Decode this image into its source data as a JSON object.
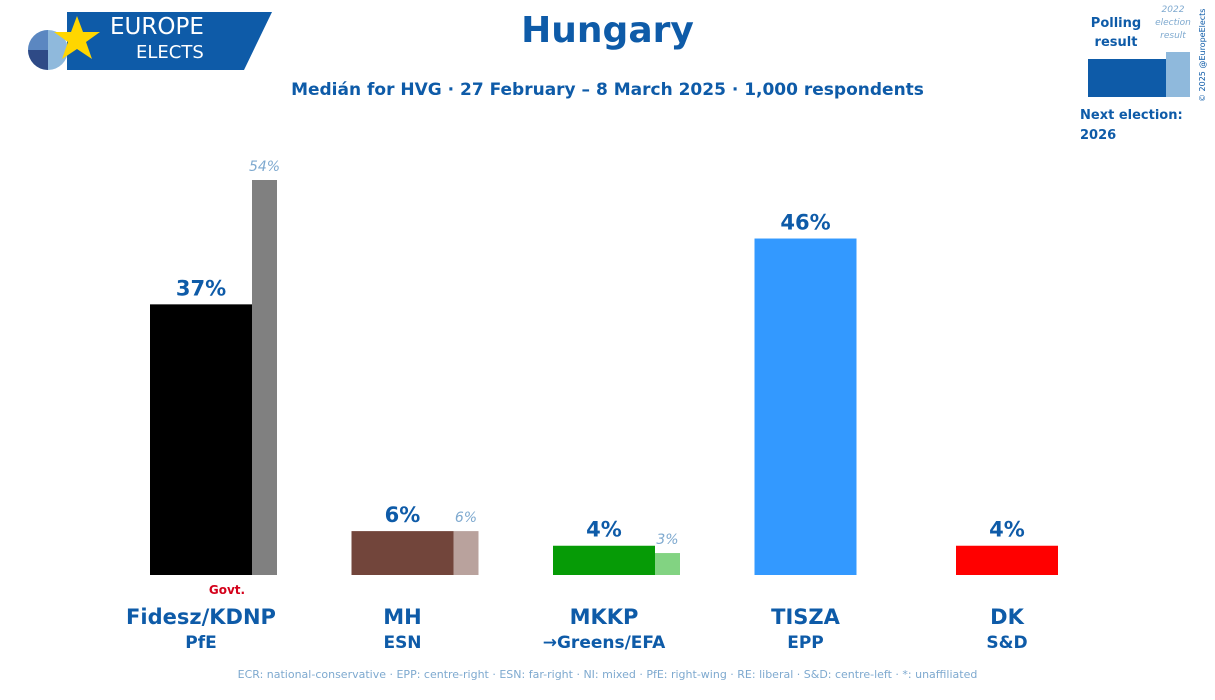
{
  "logo": {
    "line1": "EUROPE",
    "line2": "ELECTS"
  },
  "header": {
    "title": "Hungary",
    "subtitle": "Medián for HVG · 27 February – 8 March 2025 · 1,000 respondents"
  },
  "legend": {
    "polling_label": "Polling result",
    "previous_label": "2022 election result",
    "copyright": "© 2025 @EuropeElects",
    "next_election_label": "Next election:",
    "next_election_year": "2026"
  },
  "footer": {
    "text": "ECR: national-conservative · EPP: centre-right · ESN: far-right · NI: mixed · PfE: right-wing · RE: liberal · S&D: centre-left · *: unaffiliated"
  },
  "colors": {
    "brand": "#0e5ba8",
    "prev_label": "#7ea9cf",
    "govt": "#d4001a"
  },
  "chart_data": {
    "type": "bar",
    "title": "Hungary",
    "ylim": [
      0,
      54
    ],
    "categories": [
      "Fidesz/KDNP",
      "MH",
      "MKKP",
      "TISZA",
      "DK"
    ],
    "groups": [
      "PfE",
      "ESN",
      "→Greens/EFA",
      "EPP",
      "S&D"
    ],
    "series": [
      {
        "name": "Polling result",
        "values": [
          37,
          6,
          4,
          46,
          4
        ],
        "labels": [
          "37%",
          "6%",
          "4%",
          "46%",
          "4%"
        ],
        "colors": [
          "#000000",
          "#72453b",
          "#069b06",
          "#3399ff",
          "#ff0000"
        ]
      },
      {
        "name": "2022 election result",
        "values": [
          54,
          6,
          3,
          null,
          null
        ],
        "labels": [
          "54%",
          "6%",
          "3%",
          "",
          ""
        ],
        "colors": [
          "#808080",
          "#b9a29d",
          "#82d382",
          null,
          null
        ]
      }
    ],
    "annotations": [
      {
        "category": "Fidesz/KDNP",
        "text": "Govt."
      }
    ]
  }
}
